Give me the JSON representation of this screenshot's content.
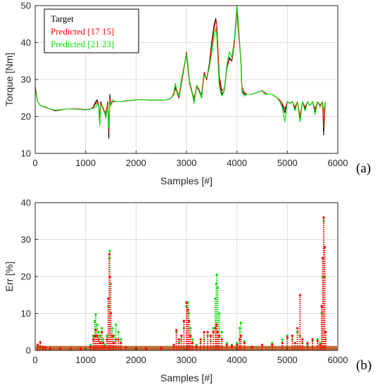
{
  "chart_data": [
    {
      "type": "line",
      "panel_label": "(a)",
      "xlabel": "Samples [#]",
      "ylabel": "Torque [Nm]",
      "xlim": [
        0,
        6000
      ],
      "ylim": [
        10,
        50
      ],
      "xticks": [
        "0",
        "1000",
        "2000",
        "3000",
        "4000",
        "5000",
        "6000"
      ],
      "yticks": [
        "10",
        "20",
        "30",
        "40",
        "50"
      ],
      "grid": true,
      "legend": "top-left",
      "series": [
        {
          "name": "Target",
          "color": "#000000",
          "x": [
            0,
            50,
            100,
            200,
            300,
            400,
            600,
            800,
            1000,
            1100,
            1150,
            1200,
            1230,
            1260,
            1280,
            1300,
            1320,
            1350,
            1400,
            1440,
            1460,
            1480,
            1500,
            1530,
            1600,
            1700,
            1800,
            2000,
            2200,
            2400,
            2600,
            2700,
            2750,
            2780,
            2800,
            2850,
            2900,
            2950,
            3000,
            3030,
            3060,
            3100,
            3150,
            3200,
            3250,
            3300,
            3350,
            3400,
            3450,
            3500,
            3550,
            3580,
            3600,
            3650,
            3700,
            3750,
            3800,
            3850,
            3900,
            3950,
            4000,
            4020,
            4050,
            4080,
            4100,
            4150,
            4200,
            4300,
            4400,
            4500,
            4550,
            4600,
            4700,
            4800,
            4850,
            4900,
            4950,
            5000,
            5050,
            5100,
            5150,
            5200,
            5250,
            5300,
            5350,
            5400,
            5450,
            5500,
            5550,
            5600,
            5650,
            5700,
            5720,
            5750
          ],
          "y": [
            28,
            24,
            23,
            22.5,
            22,
            21.5,
            22,
            22,
            21.8,
            22,
            22.5,
            24,
            24.5,
            23,
            18,
            24,
            23,
            22,
            20,
            24,
            14,
            26,
            23,
            24,
            24,
            24,
            24.2,
            24.5,
            24.5,
            24.4,
            24.5,
            25,
            26,
            28,
            27,
            25,
            29,
            33,
            37,
            33,
            29,
            27,
            24,
            28,
            27,
            25,
            32,
            30,
            34,
            40,
            45,
            46.5,
            45,
            30,
            26,
            27,
            33,
            36,
            35,
            40,
            50,
            45,
            40,
            35,
            27,
            26,
            26,
            26,
            26.5,
            27,
            26.5,
            26,
            26,
            25,
            24,
            23,
            21,
            24,
            23.5,
            24,
            22,
            24,
            19,
            24,
            22,
            24,
            23,
            24,
            21,
            24,
            23,
            24,
            15,
            24
          ]
        },
        {
          "name": "Predicted [17 15]",
          "color": "#ff0000",
          "x": [
            0,
            50,
            100,
            200,
            300,
            400,
            600,
            800,
            1000,
            1100,
            1150,
            1200,
            1230,
            1260,
            1280,
            1300,
            1320,
            1350,
            1400,
            1440,
            1460,
            1480,
            1500,
            1530,
            1600,
            1700,
            1800,
            2000,
            2200,
            2400,
            2600,
            2700,
            2750,
            2780,
            2800,
            2850,
            2900,
            2950,
            3000,
            3030,
            3060,
            3100,
            3150,
            3200,
            3250,
            3300,
            3350,
            3400,
            3450,
            3500,
            3550,
            3580,
            3600,
            3650,
            3700,
            3750,
            3800,
            3850,
            3900,
            3950,
            4000,
            4020,
            4050,
            4080,
            4100,
            4150,
            4200,
            4300,
            4400,
            4500,
            4550,
            4600,
            4700,
            4800,
            4850,
            4900,
            4950,
            5000,
            5050,
            5100,
            5150,
            5200,
            5250,
            5300,
            5350,
            5400,
            5450,
            5500,
            5550,
            5600,
            5650,
            5700,
            5720,
            5750
          ],
          "y": [
            28,
            24,
            23,
            22.5,
            22,
            21.6,
            22,
            22.1,
            21.9,
            22,
            22.3,
            23.5,
            24,
            23,
            20,
            23.5,
            23,
            22,
            21,
            23.5,
            16,
            25,
            23.5,
            24,
            24,
            24,
            24.2,
            24.5,
            24.5,
            24.4,
            24.5,
            25,
            26,
            27.5,
            27,
            25,
            29,
            33,
            37.5,
            33.5,
            29,
            27,
            25,
            28,
            27,
            26,
            32,
            30,
            33.5,
            39,
            44,
            46,
            45,
            31,
            27,
            27.5,
            33,
            35.5,
            35,
            40,
            49,
            46,
            40,
            35,
            28,
            26.5,
            26,
            26,
            26.5,
            27,
            26.5,
            26,
            26,
            25,
            24.5,
            23.5,
            22,
            24,
            23.5,
            24,
            22.5,
            24,
            20,
            24,
            22.5,
            24,
            23,
            24,
            22,
            24,
            23,
            24,
            17,
            24
          ]
        },
        {
          "name": "Predicted [21 23]",
          "color": "#00e000",
          "x": [
            0,
            50,
            100,
            200,
            300,
            400,
            600,
            800,
            1000,
            1100,
            1150,
            1200,
            1230,
            1260,
            1280,
            1300,
            1320,
            1350,
            1400,
            1440,
            1460,
            1480,
            1500,
            1530,
            1600,
            1700,
            1800,
            2000,
            2200,
            2400,
            2600,
            2700,
            2750,
            2780,
            2800,
            2850,
            2900,
            2950,
            3000,
            3030,
            3060,
            3100,
            3150,
            3200,
            3250,
            3300,
            3350,
            3400,
            3450,
            3500,
            3550,
            3580,
            3600,
            3650,
            3700,
            3750,
            3800,
            3850,
            3900,
            3950,
            4000,
            4020,
            4050,
            4080,
            4100,
            4150,
            4200,
            4300,
            4400,
            4500,
            4550,
            4600,
            4700,
            4800,
            4850,
            4900,
            4950,
            5000,
            5050,
            5100,
            5150,
            5200,
            5250,
            5300,
            5350,
            5400,
            5450,
            5500,
            5550,
            5600,
            5650,
            5700,
            5720,
            5750
          ],
          "y": [
            27.5,
            24,
            23,
            22.6,
            22,
            21.7,
            22,
            22,
            21.8,
            22,
            22.2,
            22.5,
            23.5,
            23,
            17.5,
            23,
            23,
            22.5,
            19.5,
            23,
            17,
            24,
            23,
            24.5,
            24,
            24,
            24.2,
            24.5,
            24.5,
            24.4,
            24.5,
            25,
            26.5,
            29,
            27.5,
            25.5,
            30,
            33.5,
            37,
            34,
            29.5,
            27.5,
            23.5,
            28.5,
            27.5,
            25,
            31,
            30.5,
            33,
            37,
            42,
            44,
            42,
            28,
            25.5,
            27,
            34,
            37.5,
            36,
            41,
            50,
            47,
            41,
            34,
            26.5,
            25.5,
            26,
            26,
            26.5,
            27,
            26,
            26,
            26,
            25,
            24,
            22.5,
            18.5,
            24,
            23.5,
            24,
            21.5,
            24,
            18.5,
            24,
            21.5,
            24,
            23,
            24,
            20.5,
            24,
            22.5,
            24,
            21,
            24
          ]
        }
      ]
    },
    {
      "type": "scatter",
      "panel_label": "(b)",
      "xlabel": "Samples [#]",
      "ylabel": "Err [%]",
      "xlim": [
        0,
        6000
      ],
      "ylim": [
        0,
        40
      ],
      "xticks": [
        "0",
        "1000",
        "2000",
        "3000",
        "4000",
        "5000",
        "6000"
      ],
      "yticks": [
        "0",
        "10",
        "20",
        "30",
        "40"
      ],
      "grid": true,
      "series": [
        {
          "name": "",
          "color": "#00e000",
          "x": [
            50,
            100,
            150,
            200,
            300,
            500,
            700,
            900,
            1100,
            1150,
            1180,
            1200,
            1230,
            1260,
            1290,
            1320,
            1350,
            1380,
            1420,
            1450,
            1470,
            1480,
            1500,
            1530,
            1560,
            1600,
            1650,
            1700,
            1800,
            2000,
            2200,
            2500,
            2750,
            2800,
            2850,
            2900,
            2950,
            3000,
            3030,
            3050,
            3080,
            3120,
            3200,
            3280,
            3350,
            3420,
            3480,
            3530,
            3570,
            3590,
            3600,
            3620,
            3650,
            3700,
            3800,
            3900,
            4000,
            4050,
            4080,
            4150,
            4300,
            4500,
            4700,
            4900,
            5000,
            5100,
            5150,
            5200,
            5250,
            5300,
            5400,
            5500,
            5600,
            5650,
            5680,
            5700,
            5720,
            5740,
            5760
          ],
          "y": [
            0.8,
            1.2,
            0.6,
            0.5,
            0.4,
            0.4,
            0.3,
            0.4,
            1.5,
            4,
            8,
            9.8,
            7,
            5,
            4,
            6,
            3,
            1.5,
            4,
            12,
            25,
            27,
            18,
            6,
            4,
            7,
            5,
            3,
            1,
            0.6,
            0.5,
            0.8,
            1,
            5,
            2,
            3,
            6,
            12,
            13,
            10,
            6,
            3,
            1.5,
            2,
            3,
            4,
            2.5,
            6,
            14,
            18,
            20.5,
            17,
            10,
            5,
            2,
            1.5,
            2,
            6,
            7.5,
            2.5,
            1,
            1.5,
            2,
            3,
            4,
            3,
            2,
            5,
            4,
            2,
            1.5,
            2.5,
            3,
            2,
            10,
            20,
            35,
            20,
            3
          ]
        },
        {
          "name": "",
          "color": "#ff0000",
          "x": [
            50,
            100,
            150,
            200,
            300,
            500,
            700,
            900,
            1100,
            1150,
            1180,
            1200,
            1230,
            1260,
            1290,
            1320,
            1350,
            1380,
            1420,
            1450,
            1470,
            1480,
            1500,
            1530,
            1560,
            1600,
            1650,
            1700,
            1800,
            2000,
            2200,
            2500,
            2750,
            2800,
            2850,
            2900,
            2950,
            3000,
            3030,
            3050,
            3080,
            3120,
            3200,
            3280,
            3350,
            3420,
            3480,
            3530,
            3570,
            3590,
            3600,
            3620,
            3650,
            3700,
            3800,
            3900,
            4000,
            4050,
            4080,
            4150,
            4300,
            4500,
            4700,
            4900,
            5000,
            5100,
            5150,
            5200,
            5250,
            5300,
            5400,
            5500,
            5600,
            5650,
            5680,
            5700,
            5720,
            5740,
            5760
          ],
          "y": [
            1.5,
            2.2,
            1,
            0.8,
            0.6,
            0.5,
            0.4,
            0.5,
            1,
            3,
            4,
            5.5,
            4,
            3,
            2,
            5,
            2,
            1,
            3,
            14,
            26,
            20,
            10,
            4,
            2,
            3,
            3,
            2,
            0.8,
            0.5,
            0.4,
            0.6,
            1.5,
            5.5,
            3,
            4,
            8,
            13,
            11,
            8,
            4,
            2,
            1,
            3,
            5,
            5,
            4,
            5,
            6,
            7,
            7,
            5,
            4,
            3,
            1.5,
            1.2,
            1.5,
            3,
            4,
            2,
            1,
            1.5,
            1.5,
            2,
            3.5,
            4,
            2,
            6,
            15,
            3,
            2,
            3,
            2.5,
            1.5,
            12,
            25,
            36,
            28,
            5
          ]
        }
      ]
    }
  ]
}
